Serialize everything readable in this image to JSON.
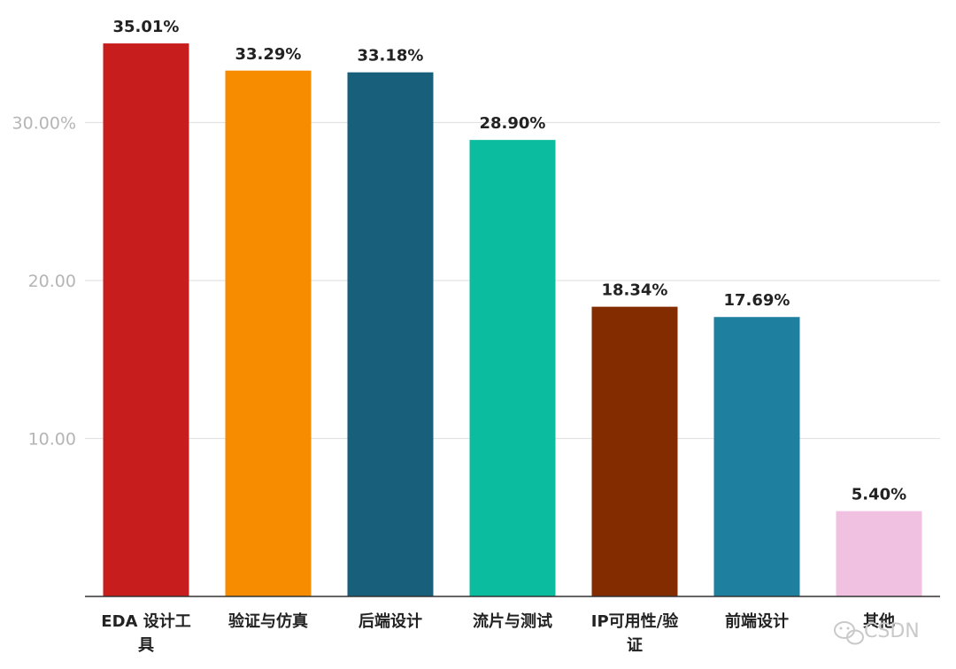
{
  "chart_data": {
    "type": "bar",
    "categories": [
      "EDA 设计工具",
      "验证与仿真",
      "后端设计",
      "流片与测试",
      "IP可用性/验证",
      "前端设计",
      "其他"
    ],
    "category_lines": [
      [
        "EDA 设计工",
        "具"
      ],
      [
        "验证与仿真"
      ],
      [
        "后端设计"
      ],
      [
        "流片与测试"
      ],
      [
        "IP可用性/验",
        "证"
      ],
      [
        "前端设计"
      ],
      [
        "其他"
      ]
    ],
    "values": [
      35.01,
      33.29,
      33.18,
      28.9,
      18.34,
      17.69,
      5.4
    ],
    "value_labels": [
      "35.01%",
      "33.29%",
      "33.18%",
      "28.90%",
      "18.34%",
      "17.69%",
      "5.40%"
    ],
    "colors": [
      "#c81d1d",
      "#f78c00",
      "#175f7a",
      "#0bbc9f",
      "#832c00",
      "#1f7f9f",
      "#f1c1e2"
    ],
    "y_ticks": [
      10,
      20,
      30
    ],
    "y_tick_labels": [
      "10.00",
      "20.00",
      "30.00%"
    ],
    "ylim": [
      0,
      37
    ],
    "grid": true,
    "title": "",
    "xlabel": "",
    "ylabel": ""
  },
  "watermark": {
    "text": "CSDN",
    "icon": "wechat-icon"
  }
}
